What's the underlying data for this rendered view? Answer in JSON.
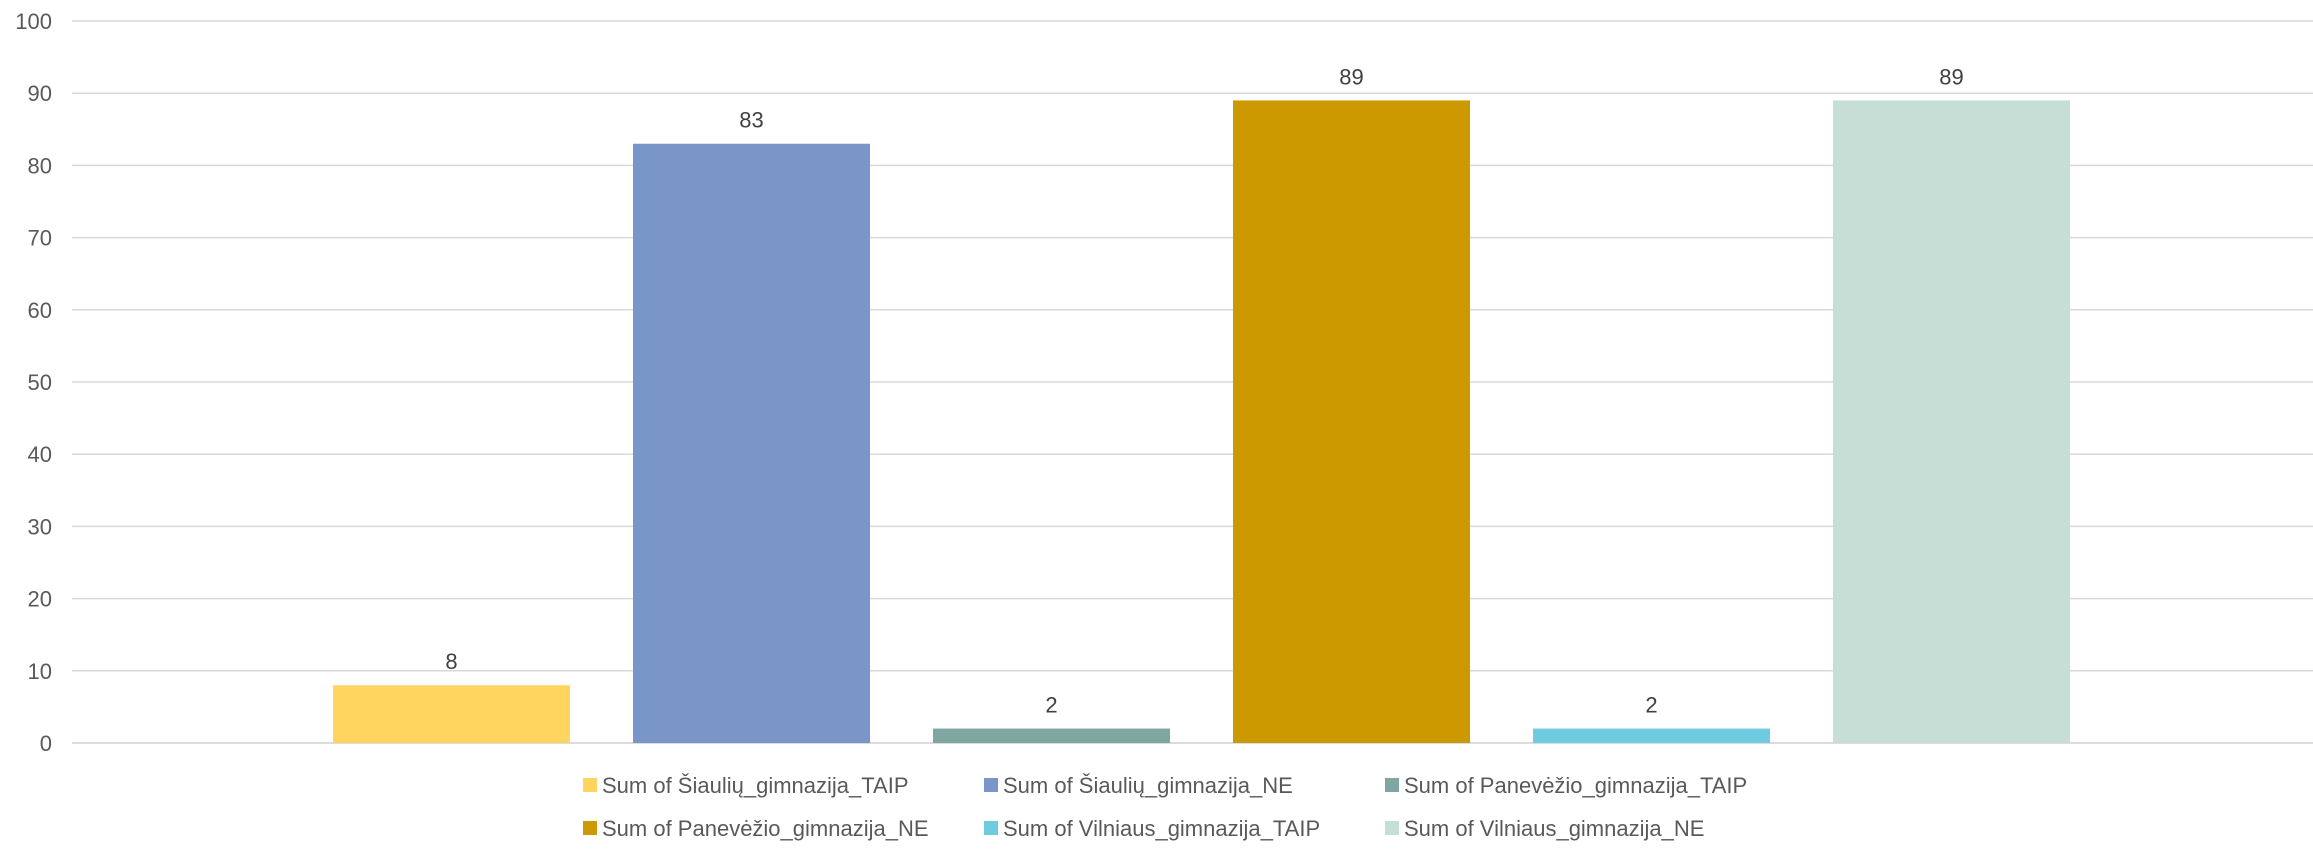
{
  "chart_data": {
    "type": "bar",
    "title": "",
    "xlabel": "",
    "ylabel": "",
    "ylim": [
      0,
      100
    ],
    "yticks": [
      0,
      10,
      20,
      30,
      40,
      50,
      60,
      70,
      80,
      90,
      100
    ],
    "grid": true,
    "legend_position": "bottom",
    "series": [
      {
        "name": "Sum of Šiaulių_gimnazija_TAIP",
        "value": 8,
        "color": "#FFD55F"
      },
      {
        "name": "Sum of Šiaulių_gimnazija_NE",
        "value": 83,
        "color": "#7A96C8"
      },
      {
        "name": "Sum of Panevėžio_gimnazija_TAIP",
        "value": 2,
        "color": "#7FA6A1"
      },
      {
        "name": "Sum of Panevėžio_gimnazija_NE",
        "value": 89,
        "color": "#CC9A00"
      },
      {
        "name": "Sum of Vilniaus_gimnazija_TAIP",
        "value": 2,
        "color": "#6ECBE0"
      },
      {
        "name": "Sum of Vilniaus_gimnazija_NE",
        "value": 89,
        "color": "#C7DED6"
      }
    ]
  }
}
